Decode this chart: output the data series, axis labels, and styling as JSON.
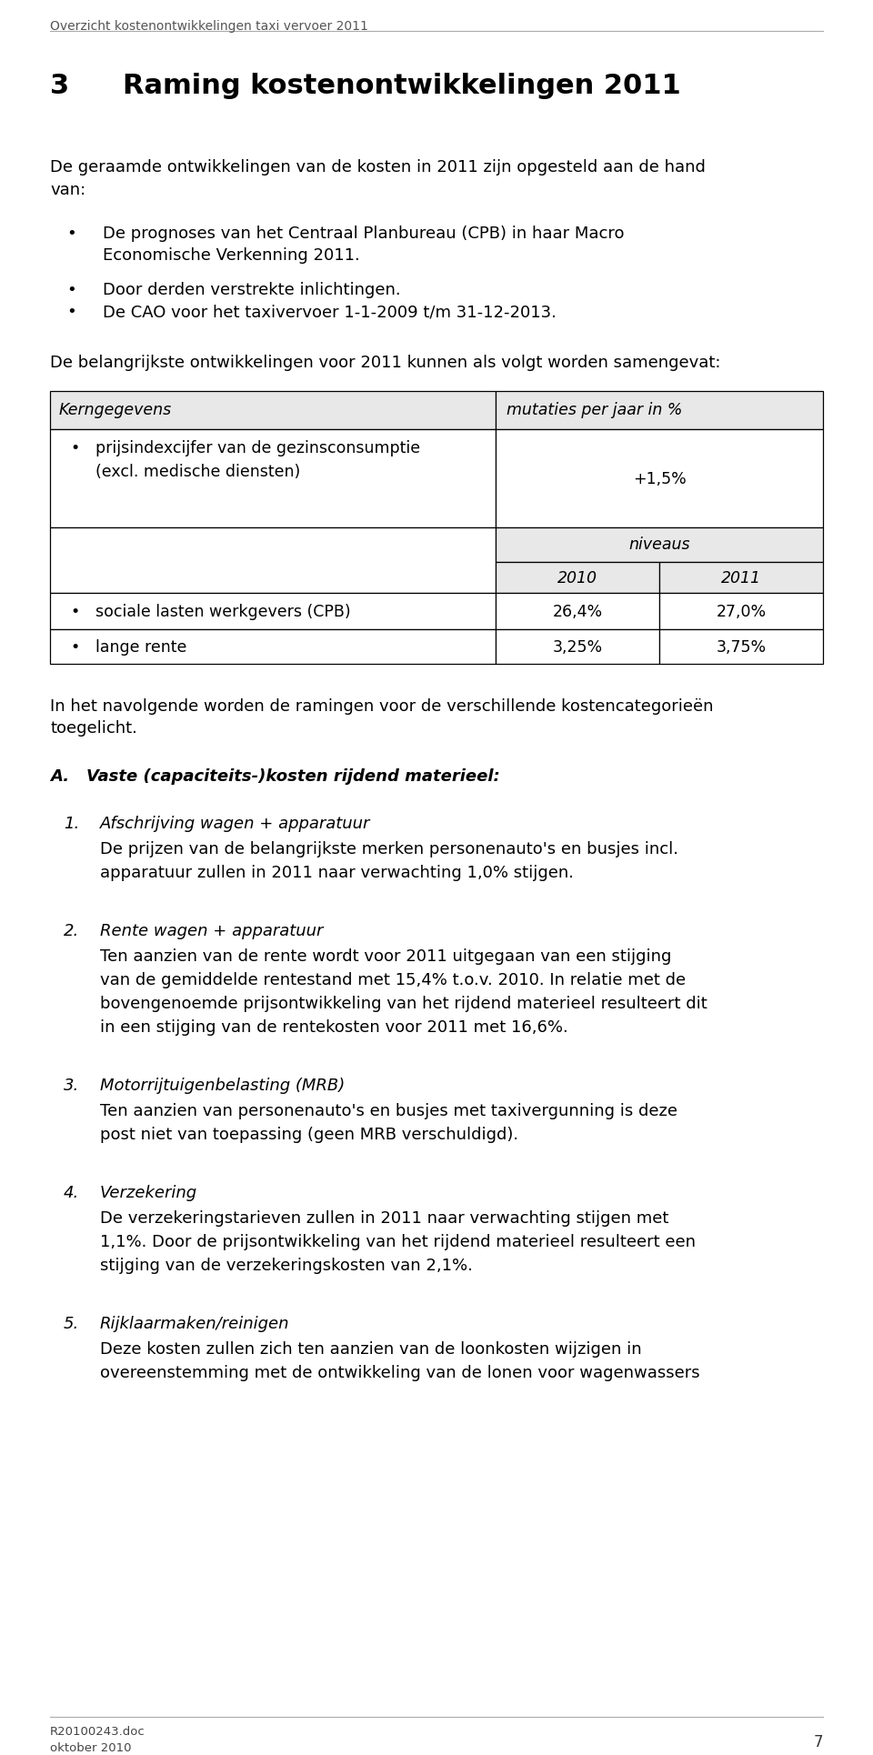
{
  "header": "Overzicht kostenontwikkelingen taxi vervoer 2011",
  "section_num": "3",
  "section_title": "Raming kostenontwikkelingen 2011",
  "intro_line1": "De geraamde ontwikkelingen van de kosten in 2011 zijn opgesteld aan de hand",
  "intro_line2": "van:",
  "bullet1_line1": "De prognoses van het Centraal Planbureau (CPB) in haar Macro",
  "bullet1_line2": "Economische Verkenning 2011.",
  "bullet2": "Door derden verstrekte inlichtingen.",
  "bullet3": "De CAO voor het taxivervoer 1-1-2009 t/m 31-12-2013.",
  "table_intro": "De belangrijkste ontwikkelingen voor 2011 kunnen als volgt worden samengevat:",
  "table_col1_header": "Kerngegevens",
  "table_col2_header": "mutaties per jaar in %",
  "table_row1_line1": "prijsindexcijfer van de gezinsconsumptie",
  "table_row1_line2": "(excl. medische diensten)",
  "table_row1_col2": "+1,5%",
  "table_niveaus_header": "niveaus",
  "table_year1": "2010",
  "table_year2": "2011",
  "table_row2_col1": "sociale lasten werkgevers (CPB)",
  "table_row2_col2_2010": "26,4%",
  "table_row2_col2_2011": "27,0%",
  "table_row3_col1": "lange rente",
  "table_row3_col2_2010": "3,25%",
  "table_row3_col2_2011": "3,75%",
  "post_table_line1": "In het navolgende worden de ramingen voor de verschillende kostencategorieën",
  "post_table_line2": "toegelicht.",
  "sec_A_num": "A.",
  "sec_A_title": "Vaste (capaciteits-)kosten rijdend materieel:",
  "item1_num": "1.",
  "item1_title": "Afschrijving wagen + apparatuur",
  "item1_line1": "De prijzen van de belangrijkste merken personenauto's en busjes incl.",
  "item1_line2": "apparatuur zullen in 2011 naar verwachting 1,0% stijgen.",
  "item2_num": "2.",
  "item2_title": "Rente wagen + apparatuur",
  "item2_line1": "Ten aanzien van de rente wordt voor 2011 uitgegaan van een stijging",
  "item2_line2": "van de gemiddelde rentestand met 15,4% t.o.v. 2010. In relatie met de",
  "item2_line3": "bovengenoemde prijsontwikkeling van het rijdend materieel resulteert dit",
  "item2_line4": "in een stijging van de rentekosten voor 2011 met 16,6%.",
  "item3_num": "3.",
  "item3_title": "Motorrijtuigenbelasting (MRB)",
  "item3_line1": "Ten aanzien van personenauto's en busjes met taxivergunning is deze",
  "item3_line2": "post niet van toepassing (geen MRB verschuldigd).",
  "item4_num": "4.",
  "item4_title": "Verzekering",
  "item4_line1": "De verzekeringstarieven zullen in 2011 naar verwachting stijgen met",
  "item4_line2": "1,1%. Door de prijsontwikkeling van het rijdend materieel resulteert een",
  "item4_line3": "stijging van de verzekeringskosten van 2,1%.",
  "item5_num": "5.",
  "item5_title": "Rijklaarmaken/reinigen",
  "item5_line1": "Deze kosten zullen zich ten aanzien van de loonkosten wijzigen in",
  "item5_line2": "overeenstemming met de ontwikkeling van de lonen voor wagenwassers",
  "footer_doc": "R20100243.doc",
  "footer_date": "oktober 2010",
  "footer_page": "7",
  "bg_color": "#ffffff",
  "gray_header": "#888888",
  "table_gray": "#e8e8e8"
}
